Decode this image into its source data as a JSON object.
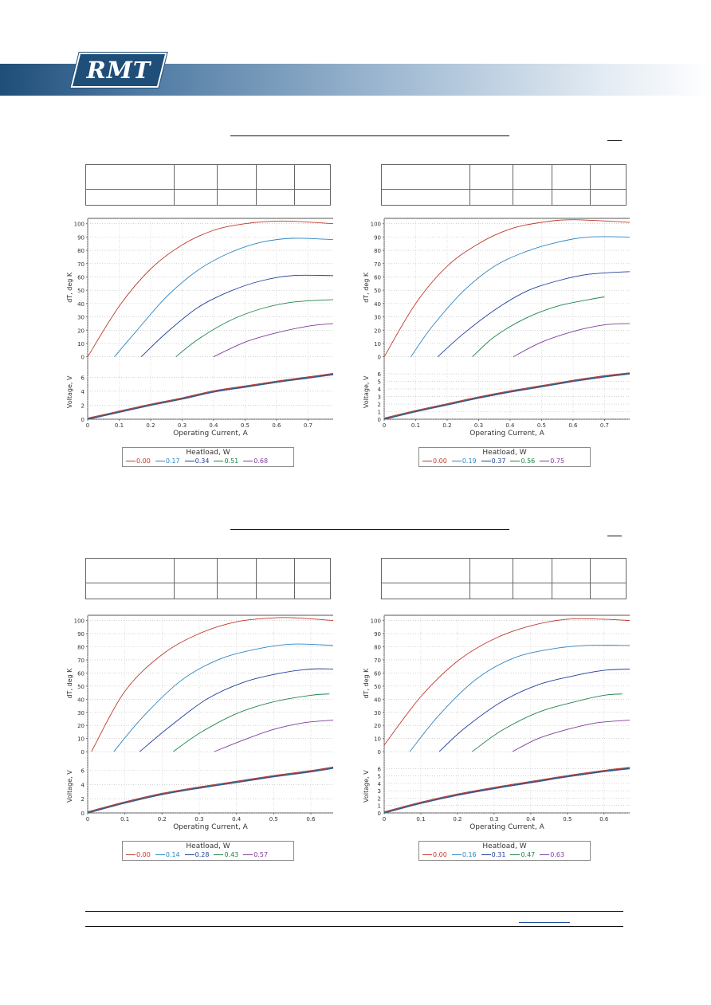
{
  "brand": {
    "logo_text": "RMT"
  },
  "colors": {
    "banner": "#1f4e79",
    "series": [
      "#c0392b",
      "#2e86c1",
      "#1f3f99",
      "#1e8449",
      "#7d3c98"
    ]
  },
  "chart_data": [
    {
      "type": "line",
      "xlabel": "Operating Current, A",
      "ylabel_top": "dT, deg K",
      "ylabel_bottom": "Voltage, V",
      "xlim": [
        0,
        0.78
      ],
      "xticks": [
        0,
        0.1,
        0.2,
        0.3,
        0.4,
        0.5,
        0.6,
        0.7
      ],
      "ylim_top": [
        0,
        104
      ],
      "yticks_top": [
        0,
        10,
        20,
        30,
        40,
        50,
        60,
        70,
        80,
        90,
        100
      ],
      "ylim_bottom": [
        0,
        7.8
      ],
      "yticks_bottom": [
        0,
        2,
        4,
        6
      ],
      "legend_title": "Heatload, W",
      "series": [
        {
          "name": "0.00",
          "dt": [
            [
              0,
              0
            ],
            [
              0.1,
              38
            ],
            [
              0.2,
              66
            ],
            [
              0.3,
              84
            ],
            [
              0.4,
              95
            ],
            [
              0.5,
              100
            ],
            [
              0.62,
              102
            ],
            [
              0.78,
              100
            ]
          ]
        },
        {
          "name": "0.17",
          "dt": [
            [
              0.085,
              0
            ],
            [
              0.15,
              18
            ],
            [
              0.25,
              45
            ],
            [
              0.35,
              65
            ],
            [
              0.45,
              78
            ],
            [
              0.55,
              86
            ],
            [
              0.65,
              89
            ],
            [
              0.78,
              88
            ]
          ]
        },
        {
          "name": "0.34",
          "dt": [
            [
              0.17,
              0
            ],
            [
              0.25,
              18
            ],
            [
              0.35,
              37
            ],
            [
              0.45,
              49
            ],
            [
              0.55,
              57
            ],
            [
              0.65,
              61
            ],
            [
              0.78,
              61
            ]
          ]
        },
        {
          "name": "0.51",
          "dt": [
            [
              0.28,
              0
            ],
            [
              0.35,
              13
            ],
            [
              0.45,
              27
            ],
            [
              0.55,
              36
            ],
            [
              0.65,
              41
            ],
            [
              0.78,
              43
            ]
          ]
        },
        {
          "name": "0.68",
          "dt": [
            [
              0.4,
              0
            ],
            [
              0.5,
              11
            ],
            [
              0.6,
              18
            ],
            [
              0.7,
              23
            ],
            [
              0.78,
              25
            ]
          ]
        }
      ],
      "voltage": [
        [
          0,
          0
        ],
        [
          0.1,
          1.0
        ],
        [
          0.2,
          2.0
        ],
        [
          0.3,
          2.9
        ],
        [
          0.4,
          3.9
        ],
        [
          0.5,
          4.6
        ],
        [
          0.6,
          5.3
        ],
        [
          0.7,
          5.9
        ],
        [
          0.78,
          6.4
        ]
      ]
    },
    {
      "type": "line",
      "xlabel": "Operating Current, A",
      "ylabel_top": "dT, deg K",
      "ylabel_bottom": "Voltage, V",
      "xlim": [
        0,
        0.78
      ],
      "xticks": [
        0,
        0.1,
        0.2,
        0.3,
        0.4,
        0.5,
        0.6,
        0.7
      ],
      "ylim_top": [
        0,
        104
      ],
      "yticks_top": [
        0,
        10,
        20,
        30,
        40,
        50,
        60,
        70,
        80,
        90,
        100
      ],
      "ylim_bottom": [
        0,
        7.2
      ],
      "yticks_bottom": [
        0,
        1,
        2,
        3,
        4,
        5,
        6
      ],
      "legend_title": "Heatload, W",
      "series": [
        {
          "name": "0.00",
          "dt": [
            [
              0,
              0
            ],
            [
              0.1,
              40
            ],
            [
              0.2,
              68
            ],
            [
              0.3,
              85
            ],
            [
              0.4,
              96
            ],
            [
              0.5,
              101
            ],
            [
              0.6,
              103
            ],
            [
              0.78,
              101
            ]
          ]
        },
        {
          "name": "0.19",
          "dt": [
            [
              0.085,
              0
            ],
            [
              0.15,
              22
            ],
            [
              0.25,
              49
            ],
            [
              0.35,
              68
            ],
            [
              0.45,
              79
            ],
            [
              0.55,
              86
            ],
            [
              0.65,
              90
            ],
            [
              0.78,
              90
            ]
          ]
        },
        {
          "name": "0.37",
          "dt": [
            [
              0.17,
              0
            ],
            [
              0.25,
              17
            ],
            [
              0.35,
              35
            ],
            [
              0.45,
              49
            ],
            [
              0.55,
              57
            ],
            [
              0.65,
              62
            ],
            [
              0.78,
              64
            ]
          ]
        },
        {
          "name": "0.56",
          "dt": [
            [
              0.28,
              0
            ],
            [
              0.35,
              15
            ],
            [
              0.45,
              29
            ],
            [
              0.55,
              38
            ],
            [
              0.65,
              43
            ],
            [
              0.7,
              45
            ]
          ]
        },
        {
          "name": "0.75",
          "dt": [
            [
              0.41,
              0
            ],
            [
              0.5,
              11
            ],
            [
              0.6,
              19
            ],
            [
              0.7,
              24
            ],
            [
              0.78,
              25
            ]
          ]
        }
      ],
      "voltage": [
        [
          0,
          0
        ],
        [
          0.1,
          1.0
        ],
        [
          0.2,
          1.9
        ],
        [
          0.3,
          2.8
        ],
        [
          0.4,
          3.6
        ],
        [
          0.5,
          4.3
        ],
        [
          0.6,
          5.0
        ],
        [
          0.7,
          5.6
        ],
        [
          0.78,
          6.0
        ]
      ]
    },
    {
      "type": "line",
      "xlabel": "Operating Current, A",
      "ylabel_top": "dT, deg K",
      "ylabel_bottom": "Voltage, V",
      "xlim": [
        0,
        0.66
      ],
      "xticks": [
        0,
        0.1,
        0.2,
        0.3,
        0.4,
        0.5,
        0.6
      ],
      "ylim_top": [
        0,
        104
      ],
      "yticks_top": [
        0,
        10,
        20,
        30,
        40,
        50,
        60,
        70,
        80,
        90,
        100
      ],
      "ylim_bottom": [
        0,
        7.5
      ],
      "yticks_bottom": [
        0,
        2,
        4,
        6
      ],
      "legend_title": "Heatload, W",
      "series": [
        {
          "name": "0.00",
          "dt": [
            [
              0.01,
              0
            ],
            [
              0.1,
              46
            ],
            [
              0.2,
              74
            ],
            [
              0.3,
              90
            ],
            [
              0.4,
              99
            ],
            [
              0.5,
              102
            ],
            [
              0.56,
              102
            ],
            [
              0.66,
              100
            ]
          ]
        },
        {
          "name": "0.14",
          "dt": [
            [
              0.07,
              0
            ],
            [
              0.15,
              27
            ],
            [
              0.25,
              54
            ],
            [
              0.35,
              70
            ],
            [
              0.45,
              78
            ],
            [
              0.55,
              82
            ],
            [
              0.66,
              81
            ]
          ]
        },
        {
          "name": "0.28",
          "dt": [
            [
              0.14,
              0
            ],
            [
              0.22,
              19
            ],
            [
              0.32,
              40
            ],
            [
              0.42,
              53
            ],
            [
              0.52,
              60
            ],
            [
              0.6,
              63
            ],
            [
              0.66,
              63
            ]
          ]
        },
        {
          "name": "0.43",
          "dt": [
            [
              0.23,
              0
            ],
            [
              0.3,
              14
            ],
            [
              0.4,
              29
            ],
            [
              0.5,
              38
            ],
            [
              0.6,
              43
            ],
            [
              0.65,
              44
            ]
          ]
        },
        {
          "name": "0.57",
          "dt": [
            [
              0.34,
              0
            ],
            [
              0.42,
              9
            ],
            [
              0.5,
              17
            ],
            [
              0.58,
              22
            ],
            [
              0.66,
              24
            ]
          ]
        }
      ],
      "voltage": [
        [
          0,
          0
        ],
        [
          0.1,
          1.4
        ],
        [
          0.2,
          2.6
        ],
        [
          0.3,
          3.5
        ],
        [
          0.4,
          4.3
        ],
        [
          0.5,
          5.1
        ],
        [
          0.6,
          5.8
        ],
        [
          0.66,
          6.3
        ]
      ]
    },
    {
      "type": "line",
      "xlabel": "Operating Current, A",
      "ylabel_top": "dT, deg K",
      "ylabel_bottom": "Voltage, V",
      "xlim": [
        0,
        0.67
      ],
      "xticks": [
        0,
        0.1,
        0.2,
        0.3,
        0.4,
        0.5,
        0.6
      ],
      "ylim_top": [
        0,
        104
      ],
      "yticks_top": [
        0,
        10,
        20,
        30,
        40,
        50,
        60,
        70,
        80,
        90,
        100
      ],
      "ylim_bottom": [
        0,
        7.2
      ],
      "yticks_bottom": [
        0,
        1,
        2,
        3,
        4,
        5,
        6
      ],
      "legend_title": "Heatload, W",
      "series": [
        {
          "name": "0.00",
          "dt": [
            [
              0,
              5
            ],
            [
              0.1,
              42
            ],
            [
              0.2,
              69
            ],
            [
              0.3,
              86
            ],
            [
              0.4,
              96
            ],
            [
              0.5,
              101
            ],
            [
              0.6,
              101
            ],
            [
              0.67,
              100
            ]
          ]
        },
        {
          "name": "0.16",
          "dt": [
            [
              0.07,
              0
            ],
            [
              0.15,
              28
            ],
            [
              0.25,
              55
            ],
            [
              0.35,
              71
            ],
            [
              0.45,
              78
            ],
            [
              0.55,
              81
            ],
            [
              0.67,
              81
            ]
          ]
        },
        {
          "name": "0.31",
          "dt": [
            [
              0.15,
              0
            ],
            [
              0.22,
              18
            ],
            [
              0.32,
              38
            ],
            [
              0.42,
              51
            ],
            [
              0.52,
              58
            ],
            [
              0.6,
              62
            ],
            [
              0.67,
              63
            ]
          ]
        },
        {
          "name": "0.47",
          "dt": [
            [
              0.24,
              0
            ],
            [
              0.32,
              16
            ],
            [
              0.42,
              30
            ],
            [
              0.52,
              38
            ],
            [
              0.6,
              43
            ],
            [
              0.65,
              44
            ]
          ]
        },
        {
          "name": "0.63",
          "dt": [
            [
              0.35,
              0
            ],
            [
              0.42,
              10
            ],
            [
              0.5,
              17
            ],
            [
              0.58,
              22
            ],
            [
              0.67,
              24
            ]
          ]
        }
      ],
      "voltage": [
        [
          0,
          0
        ],
        [
          0.1,
          1.3
        ],
        [
          0.2,
          2.4
        ],
        [
          0.3,
          3.3
        ],
        [
          0.4,
          4.1
        ],
        [
          0.5,
          4.9
        ],
        [
          0.6,
          5.6
        ],
        [
          0.67,
          6.0
        ]
      ]
    }
  ]
}
